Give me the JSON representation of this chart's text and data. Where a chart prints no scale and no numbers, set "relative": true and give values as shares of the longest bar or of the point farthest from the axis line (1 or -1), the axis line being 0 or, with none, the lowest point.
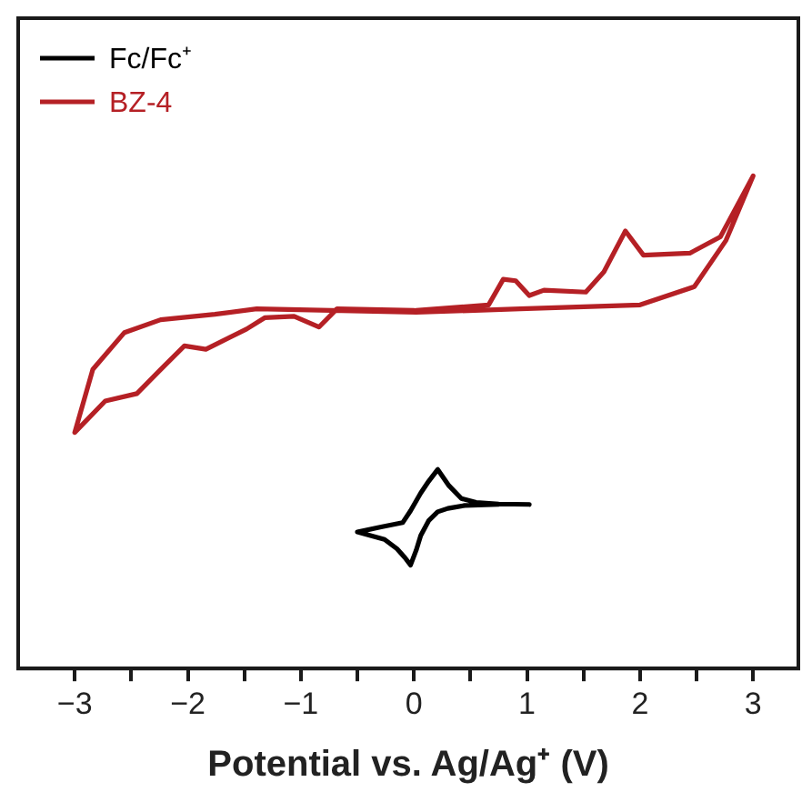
{
  "chart_data": {
    "type": "line",
    "xlabel": "Potential vs. Ag/Ag⁺ (V)",
    "relative": true,
    "legend": "top left",
    "marker": "none",
    "line_style": "solid",
    "grid": false,
    "xlim": [
      -3.5,
      3.4
    ],
    "xticks": [
      -3,
      {
        "value": -2.5,
        "label": null
      },
      -2,
      {
        "value": -1.5,
        "label": null
      },
      -1,
      {
        "value": -0.5,
        "label": null
      },
      0,
      {
        "value": 0.5,
        "label": null
      },
      1,
      {
        "value": 1.5,
        "label": null
      },
      2,
      {
        "value": 2.5,
        "label": null
      },
      3
    ],
    "series": [
      {
        "name": "Fc/Fc⁺",
        "color": "#000000",
        "x": [
          1.02,
          0.75,
          0.55,
          0.42,
          0.31,
          0.21,
          0.13,
          0.06,
          -0.03,
          -0.1,
          -0.3,
          -0.5,
          -0.26,
          -0.15,
          -0.08,
          -0.03,
          0.02,
          0.06,
          0.13,
          0.21,
          0.3,
          0.45,
          0.75
        ],
        "values": [
          0.333,
          0.334,
          0.337,
          0.345,
          0.371,
          0.404,
          0.38,
          0.356,
          0.32,
          0.296,
          0.287,
          0.277,
          0.262,
          0.243,
          0.225,
          0.21,
          0.24,
          0.27,
          0.3,
          0.318,
          0.325,
          0.331,
          0.333
        ]
      },
      {
        "name": "BZ-4",
        "color": "#b52025",
        "x": [
          0.02,
          0.66,
          0.79,
          0.9,
          1.02,
          1.15,
          1.52,
          1.68,
          1.87,
          2.03,
          2.44,
          2.71,
          3.0,
          2.76,
          2.48,
          2.0,
          0.94,
          0.02,
          -1.39,
          -1.76,
          -2.24,
          -2.56,
          -2.84,
          -3.0,
          -2.73,
          -2.45,
          -2.24,
          -2.03,
          -1.84,
          -1.48,
          -1.32,
          -1.06,
          -0.84,
          -0.68,
          0.0
        ],
        "values": [
          0.727,
          0.738,
          0.79,
          0.787,
          0.757,
          0.768,
          0.764,
          0.805,
          0.888,
          0.839,
          0.843,
          0.876,
          1.0,
          0.869,
          0.775,
          0.738,
          0.73,
          0.723,
          0.73,
          0.719,
          0.708,
          0.682,
          0.607,
          0.479,
          0.543,
          0.558,
          0.607,
          0.655,
          0.648,
          0.689,
          0.712,
          0.715,
          0.693,
          0.73,
          0.727
        ]
      }
    ]
  }
}
